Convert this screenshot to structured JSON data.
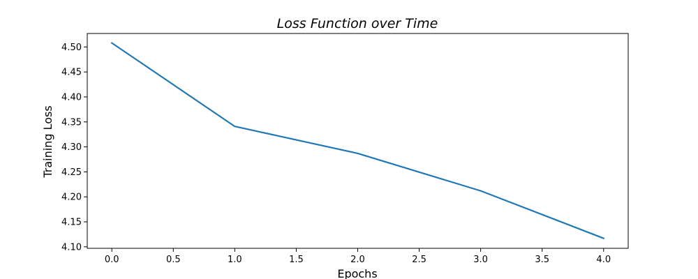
{
  "chart_data": {
    "type": "line",
    "title": "Loss Function over Time",
    "xlabel": "Epochs",
    "ylabel": "Training Loss",
    "xlim": [
      -0.2,
      4.2
    ],
    "ylim": [
      4.097,
      4.527
    ],
    "xticks": [
      0.0,
      0.5,
      1.0,
      1.5,
      2.0,
      2.5,
      3.0,
      3.5,
      4.0
    ],
    "xtick_labels": [
      "0.0",
      "0.5",
      "1.0",
      "1.5",
      "2.0",
      "2.5",
      "3.0",
      "3.5",
      "4.0"
    ],
    "yticks": [
      4.1,
      4.15,
      4.2,
      4.25,
      4.3,
      4.35,
      4.4,
      4.45,
      4.5
    ],
    "ytick_labels": [
      "4.10",
      "4.15",
      "4.20",
      "4.25",
      "4.30",
      "4.35",
      "4.40",
      "4.45",
      "4.50"
    ],
    "grid": false,
    "series": [
      {
        "color": "#1f77b4",
        "x": [
          0,
          1,
          2,
          3,
          4
        ],
        "y": [
          4.508,
          4.341,
          4.287,
          4.212,
          4.117
        ]
      }
    ]
  }
}
